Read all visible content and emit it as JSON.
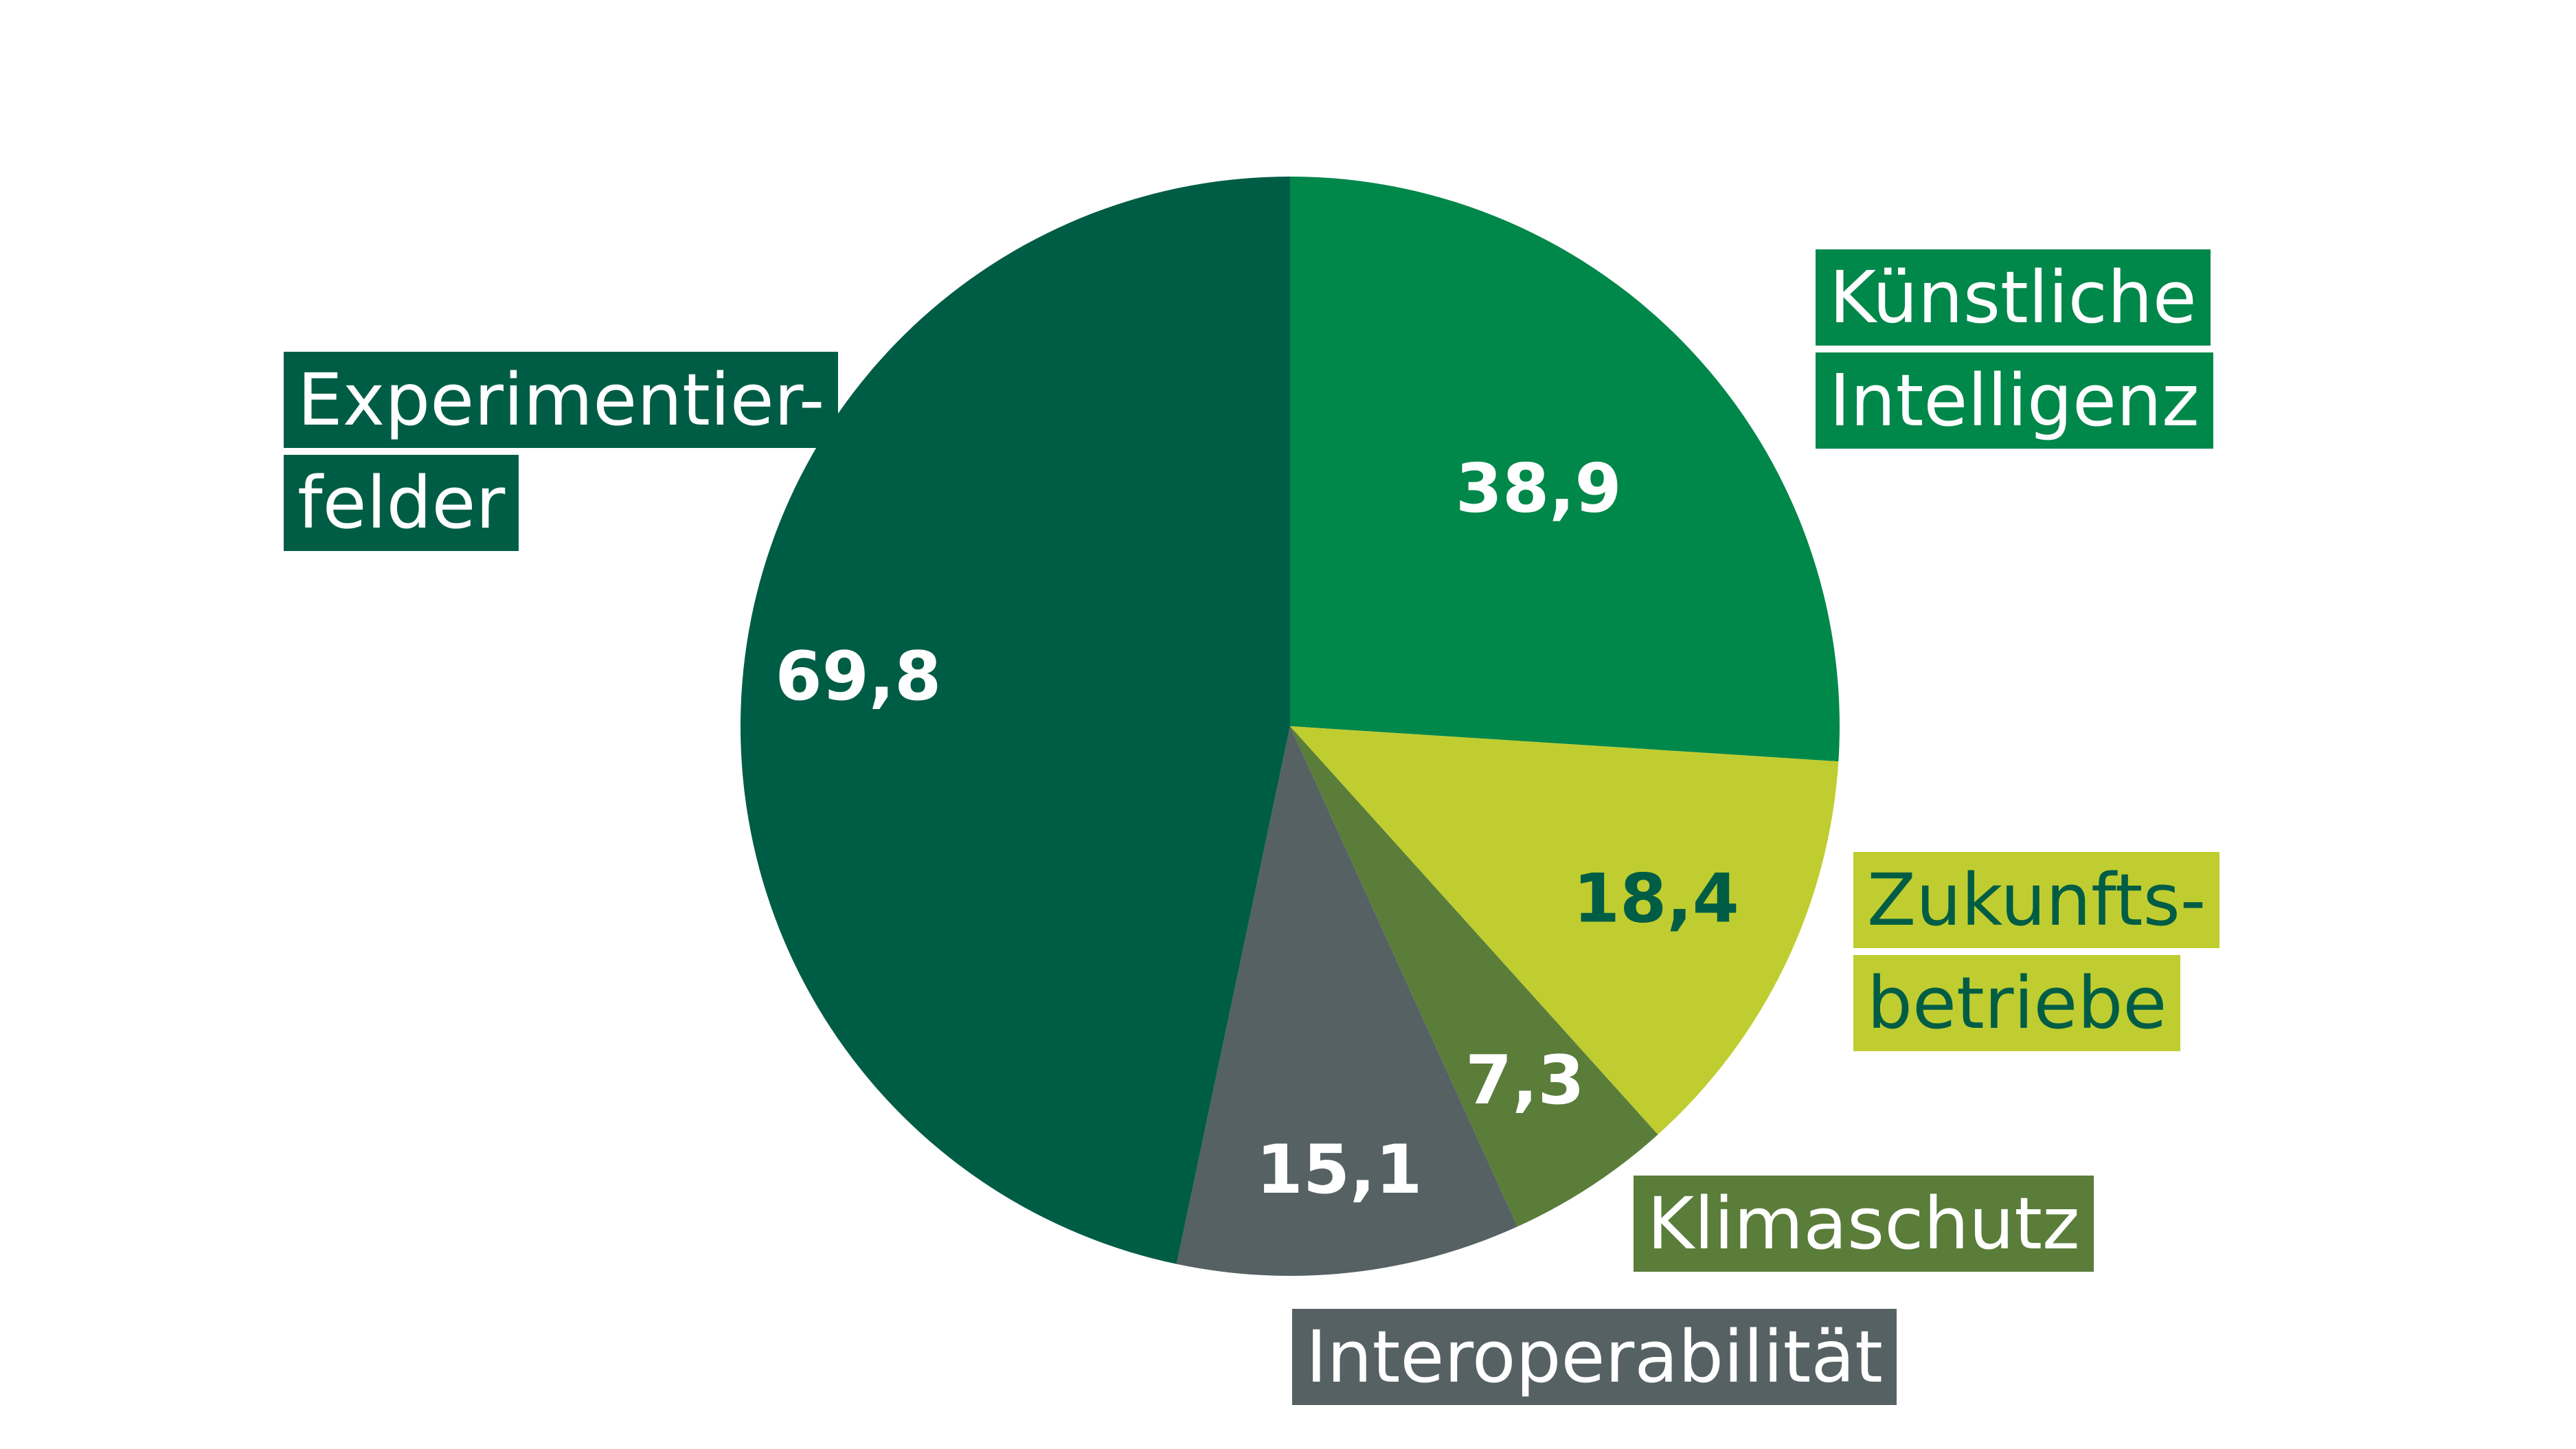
{
  "chart_data": {
    "type": "pie",
    "categories": [
      "Künstliche Intelligenz",
      "Zukunftsbetriebe",
      "Klimaschutz",
      "Interoperabilität",
      "Experimentierfelder"
    ],
    "values": [
      38.9,
      18.4,
      7.3,
      15.1,
      69.8
    ],
    "value_labels": [
      "38,9",
      "18,4",
      "7,3",
      "15,1",
      "69,8"
    ],
    "label_lines": [
      [
        "Künstliche",
        "Intelligenz"
      ],
      [
        "Zukunfts-",
        "betriebe"
      ],
      [
        "Klimaschutz"
      ],
      [
        "Interoperabilität"
      ],
      [
        "Experimentier-",
        "felder"
      ]
    ],
    "colors": [
      "#00874a",
      "#c0cd30",
      "#5a7d3a",
      "#566163",
      "#005d45"
    ],
    "value_label_colors": [
      "#ffffff",
      "#005d45",
      "#ffffff",
      "#ffffff",
      "#ffffff"
    ],
    "label_text_colors": [
      "#ffffff",
      "#005d45",
      "#ffffff",
      "#ffffff",
      "#ffffff"
    ],
    "start_angle": "12 o'clock",
    "direction": "clockwise"
  }
}
